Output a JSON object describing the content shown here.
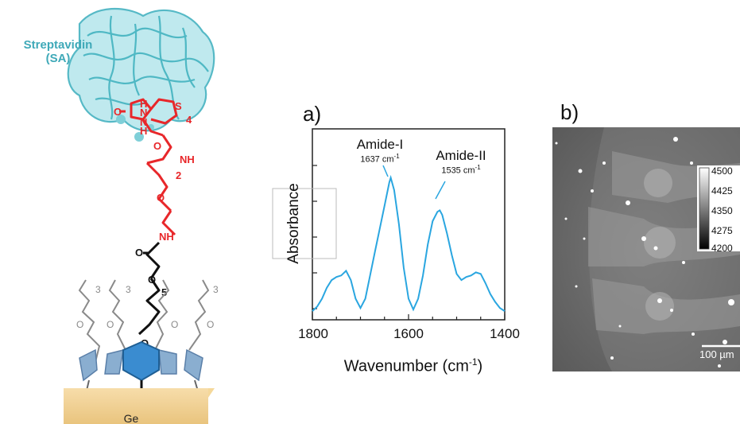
{
  "molecule": {
    "protein_label_line1": "Streptavidin",
    "protein_label_line2": "(SA)",
    "substrate_label": "Ge",
    "chain_labels": [
      "H",
      "N",
      "O",
      "N",
      "H",
      "S",
      "4",
      "O",
      "NH",
      "2",
      "O",
      "NH",
      "O",
      "O",
      "5",
      "O",
      "3",
      "O",
      "3",
      "O",
      "O",
      "3",
      "O"
    ]
  },
  "panel_a": {
    "label": "a)",
    "chart_data": {
      "type": "line",
      "xlabel": "Wavenumber (cm-1)",
      "xlabel_main": "Wavenumber (cm",
      "xlabel_sup": "-1",
      "xlabel_close": ")",
      "ylabel": "Absorbance",
      "xlim": [
        1800,
        1400
      ],
      "xticks": [
        "1800",
        "1600",
        "1400"
      ],
      "series": [
        {
          "color": "#2aa6e0",
          "x": [
            1800,
            1790,
            1780,
            1770,
            1760,
            1750,
            1740,
            1730,
            1720,
            1710,
            1700,
            1690,
            1680,
            1670,
            1660,
            1650,
            1640,
            1637,
            1630,
            1620,
            1610,
            1600,
            1590,
            1580,
            1570,
            1560,
            1550,
            1540,
            1535,
            1530,
            1520,
            1510,
            1500,
            1490,
            1480,
            1470,
            1460,
            1450,
            1440,
            1430,
            1420,
            1410,
            1400
          ],
          "y": [
            0.02,
            0.05,
            0.1,
            0.17,
            0.22,
            0.24,
            0.25,
            0.28,
            0.22,
            0.1,
            0.04,
            0.1,
            0.25,
            0.4,
            0.55,
            0.7,
            0.85,
            0.88,
            0.8,
            0.58,
            0.3,
            0.1,
            0.03,
            0.1,
            0.25,
            0.45,
            0.6,
            0.66,
            0.67,
            0.64,
            0.52,
            0.38,
            0.26,
            0.22,
            0.24,
            0.25,
            0.27,
            0.26,
            0.2,
            0.13,
            0.08,
            0.04,
            0.02
          ]
        }
      ],
      "annotations": [
        {
          "title": "Amide-I",
          "value": "1637 cm",
          "sup": "-1"
        },
        {
          "title": "Amide-II",
          "value": "1535 cm",
          "sup": "-1"
        }
      ]
    }
  },
  "panel_b": {
    "label": "b)",
    "colorbar_ticks": [
      "4500",
      "4425",
      "4350",
      "4275",
      "4200"
    ],
    "scale_bar": "100 µm"
  }
}
